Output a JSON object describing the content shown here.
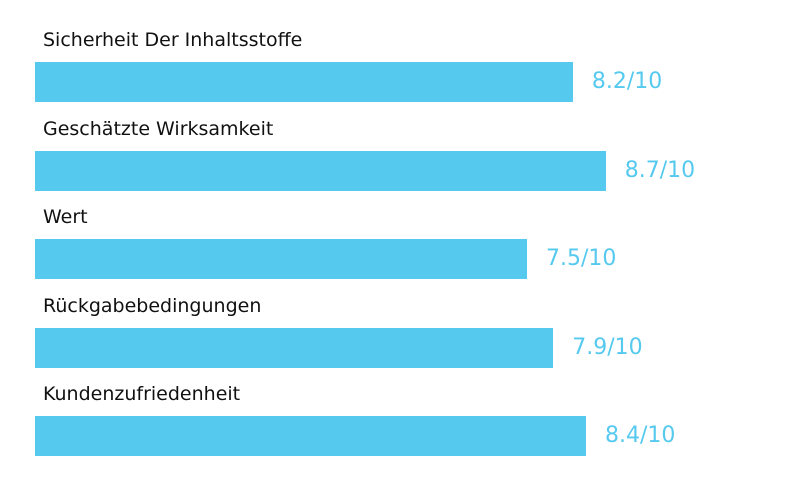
{
  "chart_data": {
    "type": "bar",
    "orientation": "horizontal",
    "title": "",
    "xlabel": "",
    "ylabel": "",
    "xlim": [
      0,
      10
    ],
    "grid": false,
    "categories": [
      "Sicherheit Der Inhaltsstoffe",
      "Geschätzte Wirksamkeit",
      "Wert",
      "Rückgabebedingungen",
      "Kundenzufriedenheit"
    ],
    "values": [
      8.2,
      8.7,
      7.5,
      7.9,
      8.4
    ],
    "value_labels": [
      "8.2/10",
      "8.7/10",
      "7.5/10",
      "7.9/10",
      "8.4/10"
    ],
    "bar_color": "#56C9EF",
    "label_color": "#56C9EF"
  }
}
